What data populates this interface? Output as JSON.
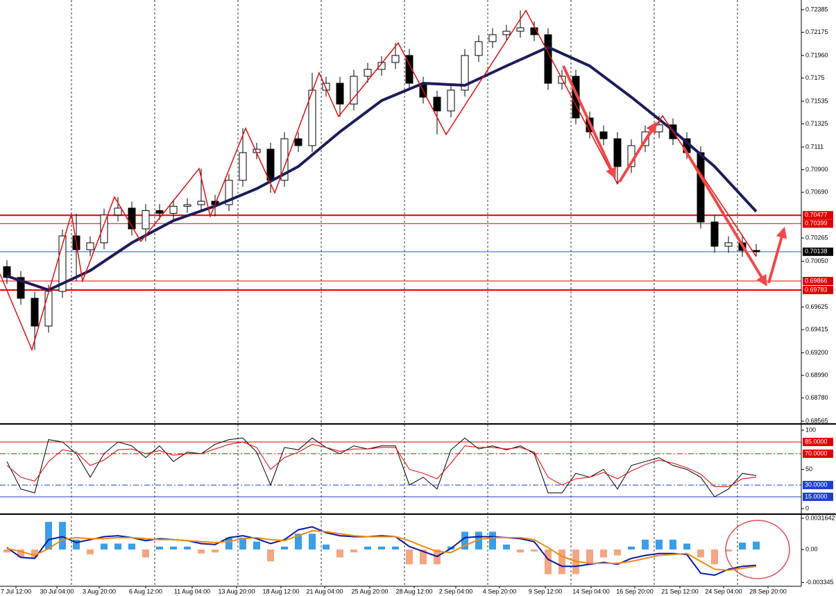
{
  "chart_data": [
    {
      "type": "candlestick",
      "xlim": [
        -0.5,
        57.25
      ],
      "ylim": [
        0.68546,
        0.72475
      ],
      "up_color": "#ffffff",
      "down_color": "#000000",
      "open": [
        0.7,
        0.69899,
        0.69706,
        0.69448,
        0.6977,
        0.70285,
        0.70157,
        0.70221,
        0.70479,
        0.70543,
        0.7035,
        0.7052,
        0.70495,
        0.7056,
        0.70575,
        0.70607,
        0.70575,
        0.70801,
        0.71058,
        0.7109,
        0.70801,
        0.71187,
        0.71123,
        0.71638,
        0.71702,
        0.71509,
        0.71767,
        0.71831,
        0.71895,
        0.7196,
        0.71702,
        0.71573,
        0.71445,
        0.71638,
        0.7196,
        0.72089,
        0.72153,
        0.72185,
        0.72217,
        0.72153,
        0.71702,
        0.71767,
        0.7138,
        0.71251,
        0.71187,
        0.70929,
        0.71123,
        0.71251,
        0.71316,
        0.71187,
        0.71058,
        0.70414,
        0.70189,
        0.70221,
        0.7015
      ],
      "high": [
        0.7006,
        0.69959,
        0.69766,
        0.6983,
        0.70345,
        0.70491,
        0.70281,
        0.70539,
        0.70646,
        0.70603,
        0.7058,
        0.7058,
        0.7062,
        0.70635,
        0.7091,
        0.70667,
        0.70861,
        0.71284,
        0.7115,
        0.7115,
        0.71247,
        0.71247,
        0.71799,
        0.71762,
        0.71762,
        0.71827,
        0.71891,
        0.71955,
        0.72076,
        0.7202,
        0.71762,
        0.71633,
        0.71698,
        0.7202,
        0.72149,
        0.72213,
        0.72245,
        0.72378,
        0.72277,
        0.72213,
        0.71827,
        0.71827,
        0.7144,
        0.71311,
        0.71247,
        0.71183,
        0.71311,
        0.714,
        0.71376,
        0.71247,
        0.71118,
        0.70474,
        0.70281,
        0.70281,
        0.7021
      ],
      "low": [
        0.69839,
        0.69646,
        0.69229,
        0.69388,
        0.6971,
        0.69867,
        0.70097,
        0.70161,
        0.70419,
        0.7029,
        0.70234,
        0.70435,
        0.70435,
        0.705,
        0.70515,
        0.70466,
        0.70515,
        0.70741,
        0.70998,
        0.70685,
        0.70741,
        0.71063,
        0.71063,
        0.71578,
        0.71393,
        0.71449,
        0.71707,
        0.71771,
        0.71835,
        0.71642,
        0.71513,
        0.71226,
        0.71385,
        0.71578,
        0.719,
        0.72029,
        0.72093,
        0.72125,
        0.72093,
        0.71642,
        0.71642,
        0.7132,
        0.71191,
        0.71127,
        0.70768,
        0.70869,
        0.71063,
        0.71191,
        0.71127,
        0.70998,
        0.70354,
        0.70129,
        0.70129,
        0.7009,
        0.70093
      ],
      "close": [
        0.69899,
        0.69706,
        0.69448,
        0.6977,
        0.70285,
        0.70157,
        0.70221,
        0.70479,
        0.70543,
        0.7035,
        0.7052,
        0.70495,
        0.7056,
        0.70575,
        0.70607,
        0.70575,
        0.70801,
        0.71058,
        0.7109,
        0.70801,
        0.71187,
        0.71123,
        0.71638,
        0.71702,
        0.71509,
        0.71767,
        0.71831,
        0.71895,
        0.7196,
        0.71702,
        0.71573,
        0.71445,
        0.71638,
        0.7196,
        0.72089,
        0.72153,
        0.72185,
        0.72217,
        0.72153,
        0.71702,
        0.71767,
        0.7138,
        0.71251,
        0.71187,
        0.70929,
        0.71123,
        0.71251,
        0.71316,
        0.71187,
        0.71058,
        0.70414,
        0.70189,
        0.70221,
        0.7015,
        0.70138
      ],
      "overlays": [
        {
          "color": "#1c1c5a",
          "x": [
            0,
            3,
            6,
            9,
            12,
            15,
            18,
            21,
            24,
            27,
            30,
            33,
            36,
            39,
            42,
            45,
            48,
            51,
            54
          ],
          "values": [
            0.69912,
            0.69783,
            0.69963,
            0.70221,
            0.70427,
            0.70562,
            0.70723,
            0.70929,
            0.71251,
            0.71541,
            0.71702,
            0.71683,
            0.71863,
            0.72037,
            0.71863,
            0.71573,
            0.71264,
            0.70929,
            0.70511
          ]
        },
        {
          "color": "#e01010",
          "x": [
            -0.5,
            1.8,
            4.65,
            5.45,
            7.75,
            9.65,
            13.85,
            14.65,
            17.2,
            19.3,
            22.5,
            23.9,
            28.2,
            31.65,
            37.4,
            44,
            47.25,
            54
          ],
          "values": [
            0.69931,
            0.69229,
            0.70491,
            0.69867,
            0.70646,
            0.70234,
            0.7091,
            0.70466,
            0.71284,
            0.70685,
            0.71799,
            0.71393,
            0.72076,
            0.71226,
            0.72378,
            0.70768,
            0.714,
            0.70093
          ]
        }
      ],
      "levels": [
        {
          "value": 0.70477,
          "color": "#e00000",
          "thick": true
        },
        {
          "value": 0.70399,
          "color": "#e00000"
        },
        {
          "value": 0.70138,
          "color": "#1f5fd0",
          "label_color": "#000000"
        },
        {
          "value": 0.69866,
          "color": "#e00000"
        },
        {
          "value": 0.69783,
          "color": "#e00000",
          "thick": true
        }
      ],
      "yticks": [
        0.72385,
        0.72175,
        {
          "value": 0.7196,
          "label": "0.71960"
        },
        0.7175,
        0.71535,
        0.71325,
        0.7111,
        {
          "value": 0.709,
          "label": "0.70900"
        },
        {
          "value": 0.7069,
          "label": "0.70690"
        },
        0.70265,
        {
          "value": 0.7005,
          "label": "0.70050"
        },
        0.69625,
        0.69415,
        {
          "value": 0.692,
          "label": "0.69200"
        },
        {
          "value": 0.6899,
          "label": "0.68990"
        },
        {
          "value": 0.6878,
          "label": "0.68780"
        },
        0.68565
      ],
      "xticks": [
        {
          "value": 0.65,
          "label": "7 Jul 12:00"
        },
        {
          "value": 3.6,
          "label": "30 Jul 04:00"
        },
        {
          "value": 6.65,
          "label": "3 Aug 20:00"
        },
        {
          "value": 10,
          "label": "6 Aug 12:00"
        },
        {
          "value": 13.35,
          "label": "11 Aug 04:00"
        },
        {
          "value": 16.55,
          "label": "13 Aug 20:00"
        },
        {
          "value": 19.75,
          "label": "18 Aug 12:00"
        },
        {
          "value": 22.9,
          "label": "21 Aug 04:00"
        },
        {
          "value": 26.15,
          "label": "25 Aug 20:00"
        },
        {
          "value": 29.35,
          "label": "28 Aug 12:00"
        },
        {
          "value": 32.35,
          "label": "2 Sep 04:00"
        },
        {
          "value": 35.5,
          "label": "4 Sep 20:00"
        },
        {
          "value": 38.8,
          "label": "9 Sep 12:00"
        },
        {
          "value": 42.1,
          "label": "14 Sep 04:00"
        },
        {
          "value": 45.25,
          "label": "16 Sep 20:00"
        },
        {
          "value": 48.5,
          "label": "21 Sep 12:00"
        },
        {
          "value": 51.65,
          "label": "24 Sep 04:00"
        },
        {
          "value": 54.85,
          "label": "28 Sep 20:00"
        }
      ]
    },
    {
      "type": "line",
      "ylim": [
        -6.2,
        107.1
      ],
      "yticks": [
        100,
        50,
        0
      ],
      "levels": [
        {
          "value": 85,
          "label": "85.0000",
          "color": "#e00000"
        },
        {
          "value": 70,
          "label": "70.0000",
          "color": "#e00000",
          "dash": true
        },
        {
          "value": 30,
          "label": "30.0000",
          "color": "#1f3fd0",
          "dash": true
        },
        {
          "value": 15,
          "label": "15.0000",
          "color": "#1f3fd0"
        }
      ],
      "series": [
        {
          "color": "#000000",
          "values": [
            60,
            25,
            20,
            88,
            85,
            70,
            40,
            70,
            85,
            80,
            65,
            80,
            60,
            72,
            70,
            82,
            88,
            90,
            72,
            30,
            78,
            75,
            90,
            78,
            70,
            80,
            76,
            80,
            80,
            30,
            40,
            25,
            75,
            90,
            76,
            80,
            75,
            80,
            70,
            20,
            20,
            45,
            40,
            50,
            25,
            55,
            60,
            65,
            55,
            50,
            40,
            15,
            25,
            45,
            42
          ]
        },
        {
          "color": "#e00000",
          "values": [
            55,
            40,
            35,
            60,
            75,
            72,
            55,
            62,
            75,
            76,
            70,
            74,
            68,
            70,
            70,
            76,
            82,
            85,
            78,
            50,
            65,
            72,
            82,
            78,
            73,
            76,
            76,
            78,
            78,
            50,
            45,
            38,
            58,
            80,
            78,
            78,
            76,
            78,
            72,
            40,
            30,
            38,
            40,
            46,
            38,
            48,
            56,
            62,
            58,
            52,
            44,
            28,
            28,
            38,
            40
          ]
        }
      ]
    },
    {
      "type": "bar",
      "ylim": [
        -0.003727,
        0.003516
      ],
      "yticks": [
        0.0031642,
        {
          "value": 0,
          "label": "0.00"
        },
        -0.003345
      ],
      "positive_color": "#3a9ee8",
      "negative_color": "#f4a582",
      "values": [
        -0.0003,
        -0.0008,
        -0.0008,
        0.0028,
        0.0028,
        0.001,
        -0.0005,
        0.0006,
        0.0006,
        0.0006,
        -0.0008,
        0.0003,
        0.0003,
        0.0003,
        -0.0004,
        -0.0003,
        0.0012,
        0.0012,
        0.0008,
        -0.0012,
        0.0003,
        0.0016,
        0.0016,
        0.0005,
        -0.0008,
        -0.0003,
        0.0003,
        0.0003,
        0.0003,
        -0.0015,
        -0.0015,
        -0.0015,
        0.0003,
        0.0018,
        0.0018,
        0.0018,
        0.0005,
        -0.0003,
        -0.0002,
        -0.0025,
        -0.0025,
        -0.0025,
        -0.0015,
        -0.0008,
        -0.0006,
        0.0003,
        0.001,
        0.001,
        0.001,
        0.0006,
        -0.0008,
        -0.0015,
        -0.0002,
        0.0007,
        0.0008
      ],
      "series": [
        {
          "color": "#0a1aa0",
          "values": [
            0.0002,
            -0.0008,
            -0.0009,
            0.001,
            0.0013,
            0.0007,
            0.001,
            0.0013,
            0.0014,
            0.0012,
            0.0009,
            0.0011,
            0.001,
            0.0009,
            0.0006,
            0.0005,
            0.0012,
            0.0014,
            0.0011,
            0.0006,
            0.001,
            0.002,
            0.0023,
            0.0017,
            0.0014,
            0.0013,
            0.0013,
            0.0014,
            0.0013,
            0.0003,
            -0.0002,
            -0.0007,
            0.0001,
            0.0012,
            0.0013,
            0.0013,
            0.0012,
            0.0011,
            0.0008,
            -0.001,
            -0.0017,
            -0.0017,
            -0.0015,
            -0.0013,
            -0.0015,
            -0.0009,
            -0.0006,
            -0.0004,
            -0.0004,
            -0.0005,
            -0.0024,
            -0.0026,
            -0.002,
            -0.0017,
            -0.0016
          ]
        },
        {
          "color": "#f08a10",
          "values": [
            0.0001,
            -0.0002,
            -0.0006,
            0.0001,
            0.001,
            0.0012,
            0.0011,
            0.0011,
            0.0012,
            0.0012,
            0.0011,
            0.001,
            0.001,
            0.0009,
            0.0008,
            0.0007,
            0.0008,
            0.0011,
            0.0012,
            0.001,
            0.0009,
            0.0014,
            0.0019,
            0.0018,
            0.0016,
            0.0014,
            0.0013,
            0.0013,
            0.0013,
            0.0009,
            0.0003,
            -0.0002,
            -0.0003,
            0.0004,
            0.001,
            0.0012,
            0.0012,
            0.0012,
            0.001,
            0.0002,
            -0.0007,
            -0.0012,
            -0.0014,
            -0.0014,
            -0.0014,
            -0.0012,
            -0.0009,
            -0.0006,
            -0.0005,
            -0.0004,
            -0.0012,
            -0.002,
            -0.0021,
            -0.0019,
            -0.0017
          ]
        }
      ]
    }
  ]
}
